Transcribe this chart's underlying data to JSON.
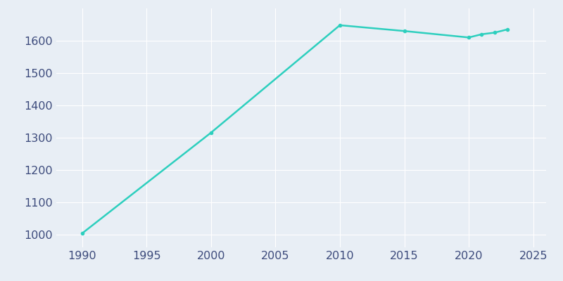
{
  "years": [
    1990,
    2000,
    2010,
    2015,
    2020,
    2021,
    2022,
    2023
  ],
  "population": [
    1003,
    1315,
    1648,
    1630,
    1610,
    1620,
    1625,
    1635
  ],
  "line_color": "#2dcfbe",
  "marker": "o",
  "marker_size": 3,
  "line_width": 1.8,
  "background_color": "#e8eef5",
  "grid_color": "#ffffff",
  "xlim": [
    1988,
    2026
  ],
  "ylim": [
    960,
    1700
  ],
  "xticks": [
    1990,
    1995,
    2000,
    2005,
    2010,
    2015,
    2020,
    2025
  ],
  "yticks": [
    1000,
    1100,
    1200,
    1300,
    1400,
    1500,
    1600
  ],
  "tick_label_color": "#3d4b7c",
  "tick_fontsize": 11.5
}
